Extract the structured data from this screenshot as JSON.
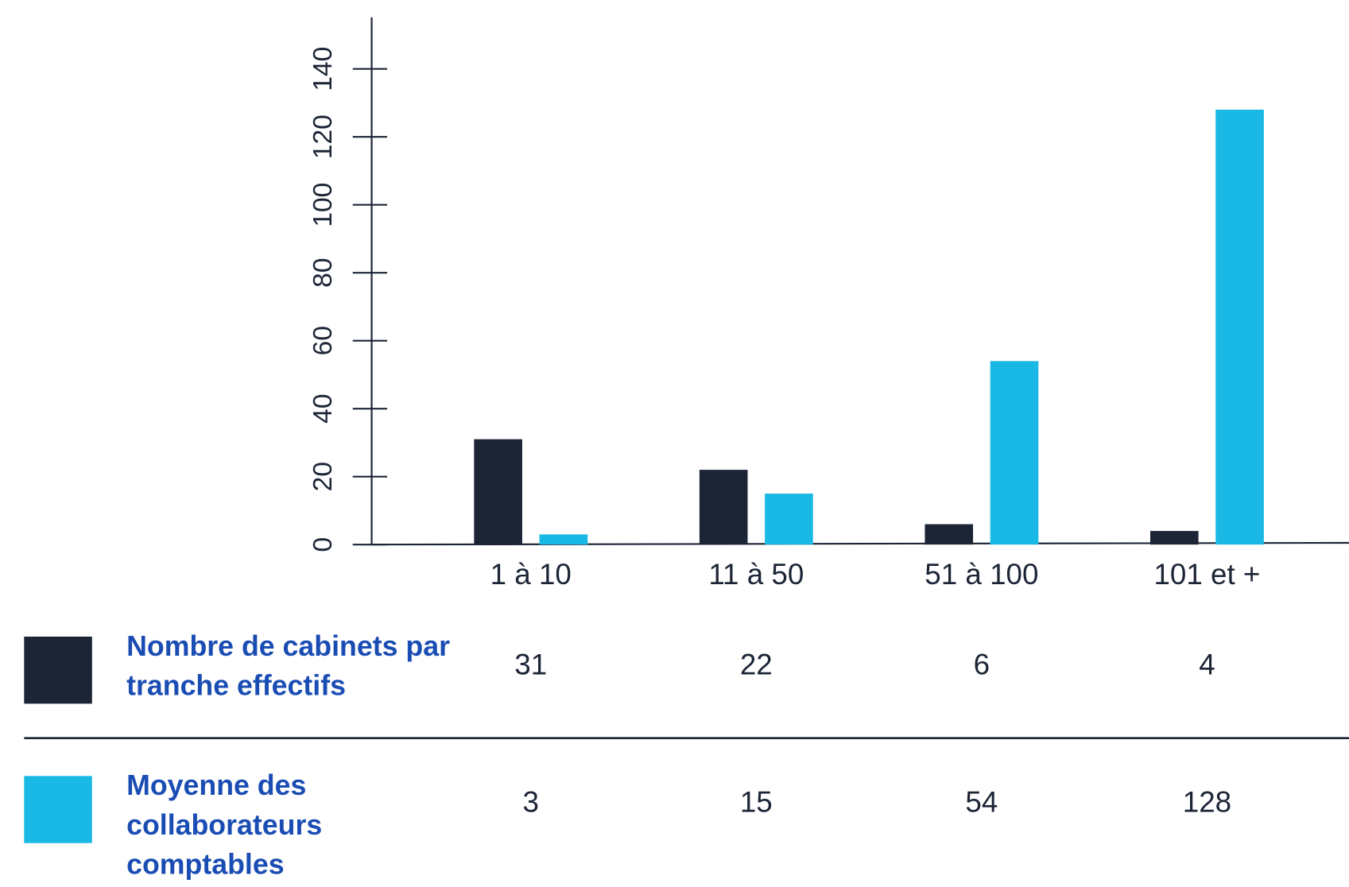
{
  "chart_data": {
    "type": "bar",
    "categories": [
      "1 à 10",
      "11 à 50",
      "51 à 100",
      "101 et +"
    ],
    "series": [
      {
        "name": "Nombre de cabinets par tranche effectifs",
        "color": "#1c2536",
        "values": [
          31,
          22,
          6,
          4
        ]
      },
      {
        "name": "Moyenne des collaborateurs comptables",
        "color": "#1ab8e4",
        "values": [
          3,
          15,
          54,
          128
        ]
      }
    ],
    "ylim": [
      0,
      140
    ],
    "yticks": [
      0,
      20,
      40,
      60,
      80,
      100,
      120,
      140
    ],
    "grid": false
  }
}
